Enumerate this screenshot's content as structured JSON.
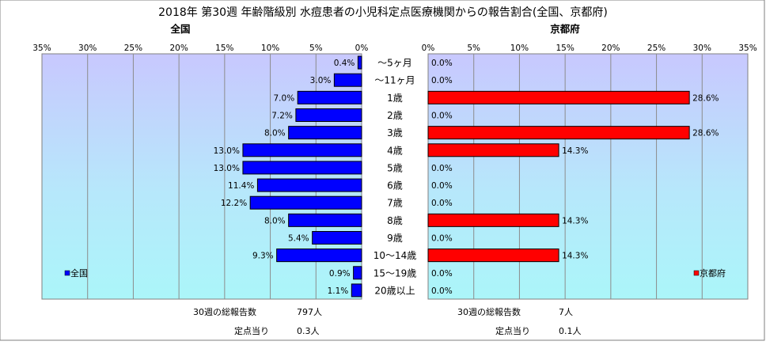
{
  "chart_data": {
    "type": "bar",
    "title": "2018年 第30週 年齢階級別 水痘患者の小児科定点医療機関からの報告割合(全国、京都府)",
    "categories": [
      "〜5ヶ月",
      "〜11ヶ月",
      "1歳",
      "2歳",
      "3歳",
      "4歳",
      "5歳",
      "6歳",
      "7歳",
      "8歳",
      "9歳",
      "10〜14歳",
      "15〜19歳",
      "20歳以上"
    ],
    "xlim": [
      0,
      35
    ],
    "xticks": [
      "0%",
      "5%",
      "10%",
      "15%",
      "20%",
      "25%",
      "30%",
      "35%"
    ],
    "grid": true,
    "panels": [
      {
        "id": "national",
        "subtitle": "全国",
        "legend_label": "全国",
        "legend_position": "bottom-left",
        "color": "#0000ff",
        "direction": "left",
        "values": [
          0.4,
          3.0,
          7.0,
          7.2,
          8.0,
          13.0,
          13.0,
          11.4,
          12.2,
          8.0,
          5.4,
          9.3,
          0.9,
          1.1
        ],
        "value_labels": [
          "0.4%",
          "3.0%",
          "7.0%",
          "7.2%",
          "8.0%",
          "13.0%",
          "13.0%",
          "11.4%",
          "12.2%",
          "8.0%",
          "5.4%",
          "9.3%",
          "0.9%",
          "1.1%"
        ],
        "total_label": "30週の総報告数",
        "total_value": "797人",
        "per_label": "定点当り",
        "per_value": "0.3人"
      },
      {
        "id": "kyoto",
        "subtitle": "京都府",
        "legend_label": "京都府",
        "legend_position": "bottom-right",
        "color": "#ff0000",
        "direction": "right",
        "values": [
          0.0,
          0.0,
          28.6,
          0.0,
          28.6,
          14.3,
          0.0,
          0.0,
          0.0,
          14.3,
          0.0,
          14.3,
          0.0,
          0.0
        ],
        "value_labels": [
          "0.0%",
          "0.0%",
          "28.6%",
          "0.0%",
          "28.6%",
          "14.3%",
          "0.0%",
          "0.0%",
          "0.0%",
          "14.3%",
          "0.0%",
          "14.3%",
          "0.0%",
          "0.0%"
        ],
        "total_label": "30週の総報告数",
        "total_value": "7人",
        "per_label": "定点当り",
        "per_value": "0.1人"
      }
    ]
  }
}
